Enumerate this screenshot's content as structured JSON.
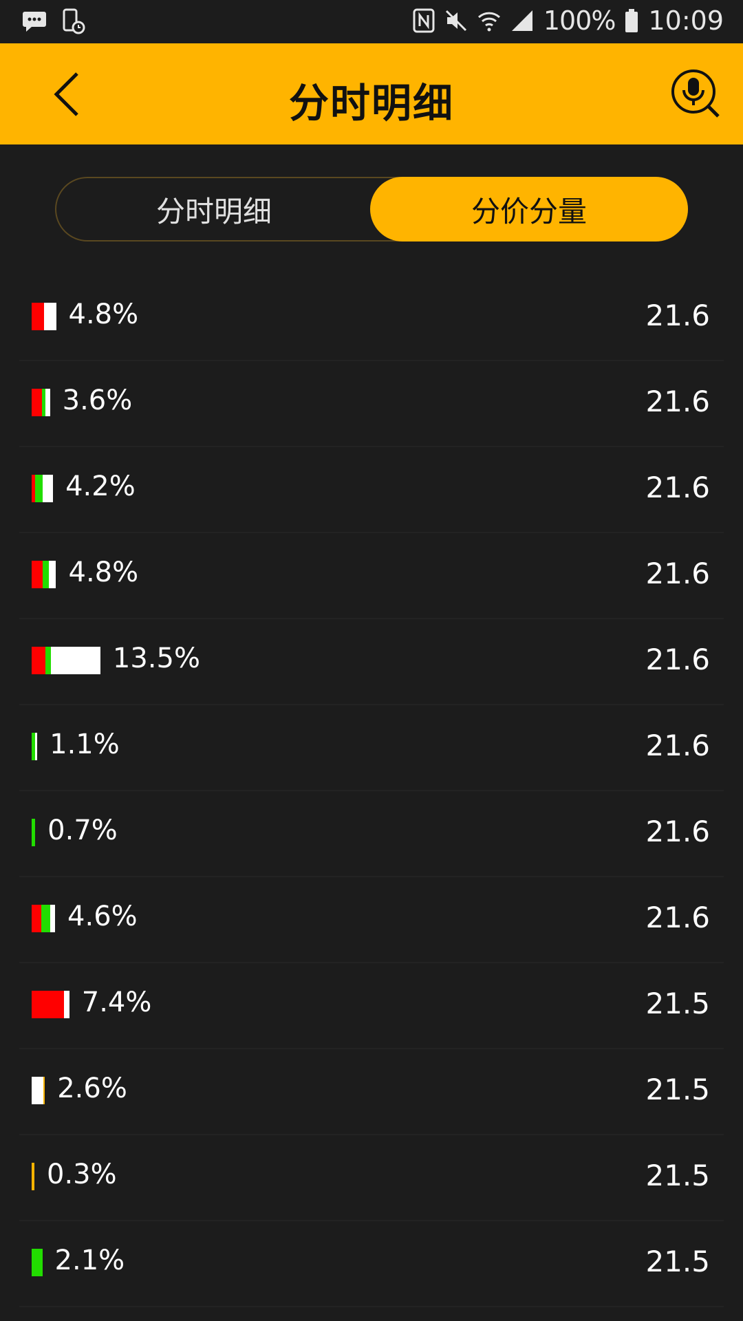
{
  "status_bar": {
    "battery": "100%",
    "time": "10:09"
  },
  "header": {
    "title": "分时明细"
  },
  "tabs": [
    {
      "label": "分时明细",
      "active": false
    },
    {
      "label": "分价分量",
      "active": true
    }
  ],
  "colors": {
    "accent": "#ffb400",
    "buy": "#ff0000",
    "sell": "#22dd00",
    "neutral": "#ffffff",
    "background": "#1c1c1c"
  },
  "rows": [
    {
      "percent": "4.8%",
      "price": "21.6",
      "red": 0.5,
      "green": 0.0,
      "white": 0.5,
      "orange": 0.0
    },
    {
      "percent": "3.6%",
      "price": "21.6",
      "red": 0.55,
      "green": 0.2,
      "white": 0.25,
      "orange": 0.0
    },
    {
      "percent": "4.2%",
      "price": "21.6",
      "red": 0.15,
      "green": 0.35,
      "white": 0.5,
      "orange": 0.0
    },
    {
      "percent": "4.8%",
      "price": "21.6",
      "red": 0.45,
      "green": 0.25,
      "white": 0.3,
      "orange": 0.0
    },
    {
      "percent": "13.5%",
      "price": "21.6",
      "red": 0.2,
      "green": 0.08,
      "white": 0.72,
      "orange": 0.0
    },
    {
      "percent": "1.1%",
      "price": "21.6",
      "red": 0.0,
      "green": 0.6,
      "white": 0.4,
      "orange": 0.0
    },
    {
      "percent": "0.7%",
      "price": "21.6",
      "red": 0.0,
      "green": 1.0,
      "white": 0.0,
      "orange": 0.0
    },
    {
      "percent": "4.6%",
      "price": "21.6",
      "red": 0.4,
      "green": 0.4,
      "white": 0.2,
      "orange": 0.0
    },
    {
      "percent": "7.4%",
      "price": "21.5",
      "red": 0.85,
      "green": 0.0,
      "white": 0.15,
      "orange": 0.0
    },
    {
      "percent": "2.6%",
      "price": "21.5",
      "red": 0.0,
      "green": 0.0,
      "white": 0.9,
      "orange": 0.1
    },
    {
      "percent": "0.3%",
      "price": "21.5",
      "red": 0.0,
      "green": 0.0,
      "white": 0.0,
      "orange": 1.0
    },
    {
      "percent": "2.1%",
      "price": "21.5",
      "red": 0.0,
      "green": 1.0,
      "white": 0.0,
      "orange": 0.0
    }
  ]
}
